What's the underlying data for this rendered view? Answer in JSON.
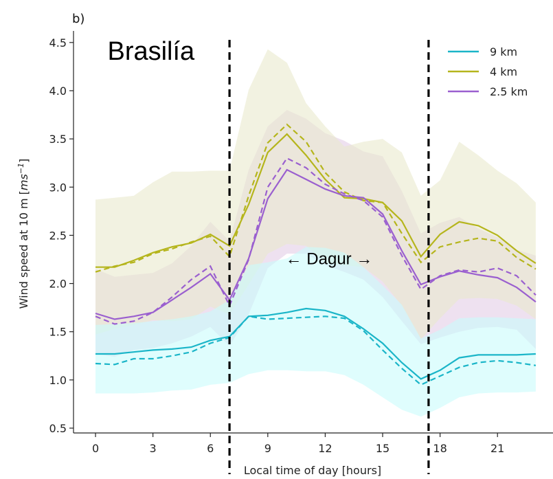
{
  "chart_data": {
    "type": "line",
    "panel_label": "b)",
    "xlabel": "Local time of day [hours]",
    "ylabel": "Wind speed at 10 m [ms⁻¹]",
    "xlim": [
      -1.15,
      23.9
    ],
    "ylim": [
      0.45,
      4.62
    ],
    "xticks": [
      0,
      3,
      6,
      9,
      12,
      15,
      18,
      21
    ],
    "yticks": [
      0.5,
      1.0,
      1.5,
      2.0,
      2.5,
      3.0,
      3.5,
      4.0,
      4.5
    ],
    "ytick_labels": [
      "0.5",
      "1.0",
      "1.5",
      "2.0",
      "2.5",
      "3.0",
      "3.5",
      "4.0",
      "4.5"
    ],
    "grid": false,
    "legend_position": "top-right",
    "x": [
      0,
      1,
      2,
      3,
      4,
      5,
      6,
      7,
      8,
      9,
      10,
      11,
      12,
      13,
      14,
      15,
      16,
      17,
      18,
      19,
      20,
      21,
      22,
      23
    ],
    "vlines": [
      7,
      17.4
    ],
    "annotations": [
      {
        "text": "Brasilía",
        "x": 2.9,
        "y": 4.32,
        "size": "large"
      },
      {
        "text": "← Dagur →",
        "x": 12.2,
        "y": 2.2,
        "size": "medium"
      }
    ],
    "series": [
      {
        "name": "9 km",
        "color": "#1ab5c8",
        "fill": "#c9fbfc",
        "solid": [
          1.27,
          1.27,
          1.29,
          1.31,
          1.32,
          1.34,
          1.41,
          1.45,
          1.66,
          1.67,
          1.7,
          1.74,
          1.72,
          1.66,
          1.53,
          1.38,
          1.18,
          1.01,
          1.1,
          1.23,
          1.26,
          1.26,
          1.26,
          1.27
        ],
        "dashed": [
          1.17,
          1.16,
          1.22,
          1.22,
          1.25,
          1.29,
          1.38,
          1.44,
          1.66,
          1.63,
          1.64,
          1.65,
          1.66,
          1.64,
          1.51,
          1.31,
          1.12,
          0.95,
          1.04,
          1.13,
          1.18,
          1.2,
          1.18,
          1.15
        ],
        "lower": [
          0.86,
          0.86,
          0.86,
          0.87,
          0.89,
          0.9,
          0.95,
          0.97,
          1.06,
          1.1,
          1.1,
          1.09,
          1.09,
          1.05,
          0.95,
          0.82,
          0.69,
          0.62,
          0.71,
          0.82,
          0.86,
          0.87,
          0.87,
          0.88
        ],
        "upper": [
          1.57,
          1.58,
          1.59,
          1.61,
          1.63,
          1.66,
          1.71,
          1.83,
          2.19,
          2.22,
          2.26,
          2.38,
          2.37,
          2.32,
          2.17,
          1.98,
          1.78,
          1.43,
          1.52,
          1.64,
          1.65,
          1.65,
          1.64,
          1.63
        ]
      },
      {
        "name": "4 km",
        "color": "#b5b51c",
        "fill": "#e9e9cd",
        "solid": [
          2.17,
          2.17,
          2.24,
          2.32,
          2.38,
          2.42,
          2.51,
          2.39,
          2.82,
          3.36,
          3.55,
          3.33,
          3.08,
          2.89,
          2.88,
          2.84,
          2.65,
          2.28,
          2.51,
          2.64,
          2.6,
          2.5,
          2.34,
          2.21
        ],
        "dashed": [
          2.12,
          2.18,
          2.22,
          2.31,
          2.36,
          2.43,
          2.49,
          2.28,
          2.91,
          3.46,
          3.65,
          3.47,
          3.15,
          2.95,
          2.86,
          2.84,
          2.52,
          2.22,
          2.38,
          2.43,
          2.47,
          2.44,
          2.27,
          2.15
        ],
        "lower": [
          1.47,
          1.53,
          1.57,
          1.62,
          1.61,
          1.63,
          1.76,
          1.68,
          1.99,
          2.31,
          2.41,
          2.39,
          2.21,
          2.19,
          2.17,
          2.02,
          1.77,
          1.42,
          1.64,
          1.84,
          1.85,
          1.84,
          1.77,
          1.63
        ],
        "upper": [
          2.87,
          2.89,
          2.91,
          3.05,
          3.16,
          3.16,
          3.17,
          3.17,
          4.01,
          4.43,
          4.29,
          3.87,
          3.63,
          3.42,
          3.47,
          3.5,
          3.36,
          2.91,
          3.07,
          3.47,
          3.33,
          3.17,
          3.04,
          2.84
        ]
      },
      {
        "name": "2.5 km",
        "color": "#9a5fcf",
        "fill": "#e2cde6",
        "solid": [
          1.69,
          1.63,
          1.66,
          1.7,
          1.83,
          1.96,
          2.1,
          1.83,
          2.26,
          2.88,
          3.18,
          3.08,
          2.98,
          2.91,
          2.89,
          2.72,
          2.34,
          1.99,
          2.07,
          2.13,
          2.09,
          2.06,
          1.96,
          1.81
        ],
        "dashed": [
          1.66,
          1.58,
          1.61,
          1.7,
          1.86,
          2.04,
          2.18,
          1.77,
          2.25,
          3.0,
          3.3,
          3.2,
          3.03,
          2.93,
          2.86,
          2.69,
          2.29,
          1.94,
          2.08,
          2.14,
          2.12,
          2.16,
          2.08,
          1.88
        ],
        "lower": [
          1.27,
          1.24,
          1.31,
          1.33,
          1.38,
          1.45,
          1.55,
          1.35,
          1.68,
          2.16,
          2.31,
          2.31,
          2.19,
          2.12,
          2.04,
          1.86,
          1.61,
          1.37,
          1.44,
          1.5,
          1.54,
          1.55,
          1.52,
          1.32
        ],
        "upper": [
          2.15,
          2.07,
          2.09,
          2.11,
          2.21,
          2.39,
          2.64,
          2.44,
          3.18,
          3.63,
          3.8,
          3.71,
          3.56,
          3.48,
          3.37,
          3.32,
          2.96,
          2.52,
          2.63,
          2.69,
          2.57,
          2.48,
          2.35,
          2.29
        ]
      }
    ]
  }
}
